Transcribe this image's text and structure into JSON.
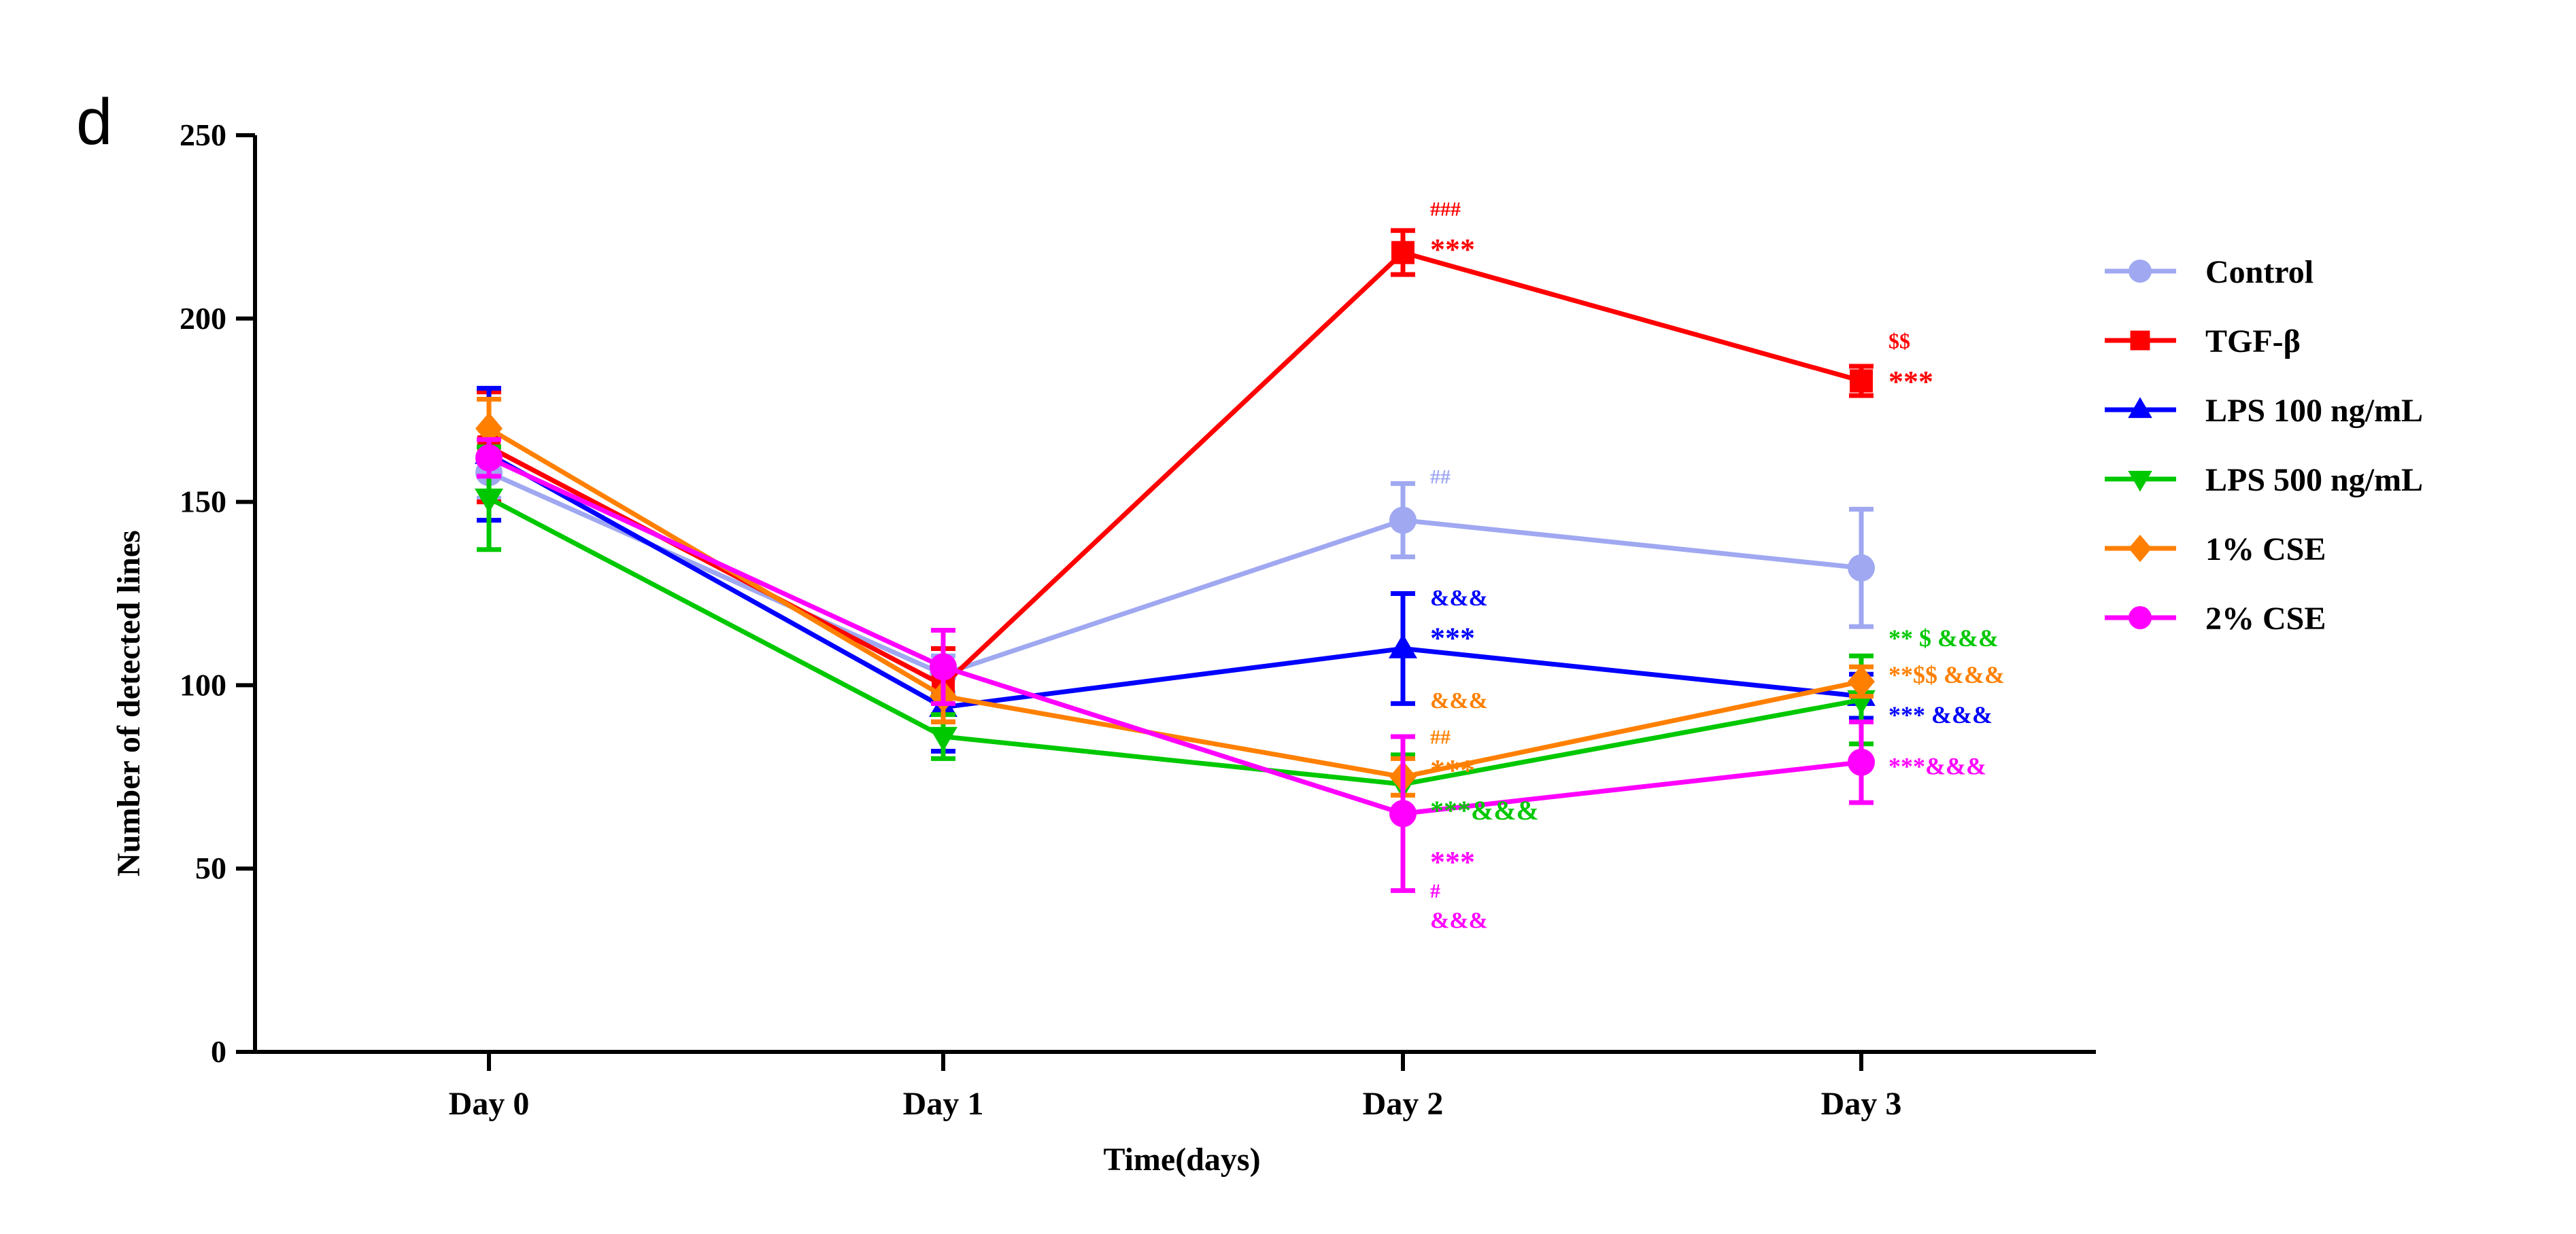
{
  "panel_label": "d",
  "chart_data": {
    "type": "line",
    "xlabel": "Time(days)",
    "ylabel": "Number of detected lines",
    "categories": [
      "Day 0",
      "Day 1",
      "Day 2",
      "Day 3"
    ],
    "ylim": [
      0,
      250
    ],
    "yticks": [
      0,
      50,
      100,
      150,
      200,
      250
    ],
    "grid": false,
    "legend_position": "right",
    "series": [
      {
        "name": "Control",
        "color": "#9fa8f0",
        "marker": "circle",
        "values": [
          158,
          103,
          145,
          132
        ],
        "errors": [
          7,
          5,
          10,
          16
        ]
      },
      {
        "name": "TGF-β",
        "color": "#ff0000",
        "marker": "square",
        "values": [
          165,
          100,
          218,
          183
        ],
        "errors": [
          15,
          10,
          6,
          4
        ]
      },
      {
        "name": "LPS 100 ng/mL",
        "color": "#0000ff",
        "marker": "triangle-up",
        "values": [
          163,
          94,
          110,
          97
        ],
        "errors": [
          18,
          12,
          15,
          6
        ]
      },
      {
        "name": "LPS 500 ng/mL",
        "color": "#00c800",
        "marker": "triangle-down",
        "values": [
          151,
          86,
          73,
          96
        ],
        "errors": [
          14,
          6,
          8,
          12
        ]
      },
      {
        "name": "1% CSE",
        "color": "#ff8000",
        "marker": "diamond",
        "values": [
          170,
          97,
          75,
          101
        ],
        "errors": [
          8,
          7,
          5,
          4
        ]
      },
      {
        "name": "2% CSE",
        "color": "#ff00ff",
        "marker": "circle",
        "values": [
          162,
          105,
          65,
          79
        ],
        "errors": [
          5,
          10,
          21,
          11
        ]
      }
    ],
    "annotations": [
      {
        "text": "###",
        "color": "#ff0000",
        "x": "Day 2",
        "y": 230,
        "size": 30
      },
      {
        "text": "***",
        "color": "#ff0000",
        "x": "Day 2",
        "y": 219,
        "size": 44
      },
      {
        "text": "##",
        "color": "#9fa8f0",
        "x": "Day 2",
        "y": 157,
        "size": 30
      },
      {
        "text": "&&&",
        "color": "#0000ff",
        "x": "Day 2",
        "y": 124,
        "size": 34
      },
      {
        "text": "***",
        "color": "#0000ff",
        "x": "Day 2",
        "y": 113,
        "size": 44
      },
      {
        "text": "&&&",
        "color": "#ff8000",
        "x": "Day 2",
        "y": 96,
        "size": 34
      },
      {
        "text": "##",
        "color": "#ff8000",
        "x": "Day 2",
        "y": 86,
        "size": 30
      },
      {
        "text": "***",
        "color": "#ff8000",
        "x": "Day 2",
        "y": 77,
        "size": 44
      },
      {
        "text": "***&&&",
        "color": "#00c800",
        "x": "Day 2",
        "y": 66,
        "size": 40
      },
      {
        "text": "***",
        "color": "#ff00ff",
        "x": "Day 2",
        "y": 52,
        "size": 44
      },
      {
        "text": "#",
        "color": "#ff00ff",
        "x": "Day 2",
        "y": 44,
        "size": 30
      },
      {
        "text": "&&&",
        "color": "#ff00ff",
        "x": "Day 2",
        "y": 36,
        "size": 34
      },
      {
        "text": "$$",
        "color": "#ff0000",
        "x": "Day 3",
        "y": 194,
        "size": 32
      },
      {
        "text": "***",
        "color": "#ff0000",
        "x": "Day 3",
        "y": 183,
        "size": 44
      },
      {
        "text": "** $ &&&",
        "color": "#00c800",
        "x": "Day 3",
        "y": 113,
        "size": 36
      },
      {
        "text": "**$$ &&&",
        "color": "#ff8000",
        "x": "Day 3",
        "y": 103,
        "size": 36
      },
      {
        "text": "*** &&&",
        "color": "#0000ff",
        "x": "Day 3",
        "y": 92,
        "size": 36
      },
      {
        "text": "***&&&",
        "color": "#ff00ff",
        "x": "Day 3",
        "y": 78,
        "size": 36
      }
    ]
  }
}
